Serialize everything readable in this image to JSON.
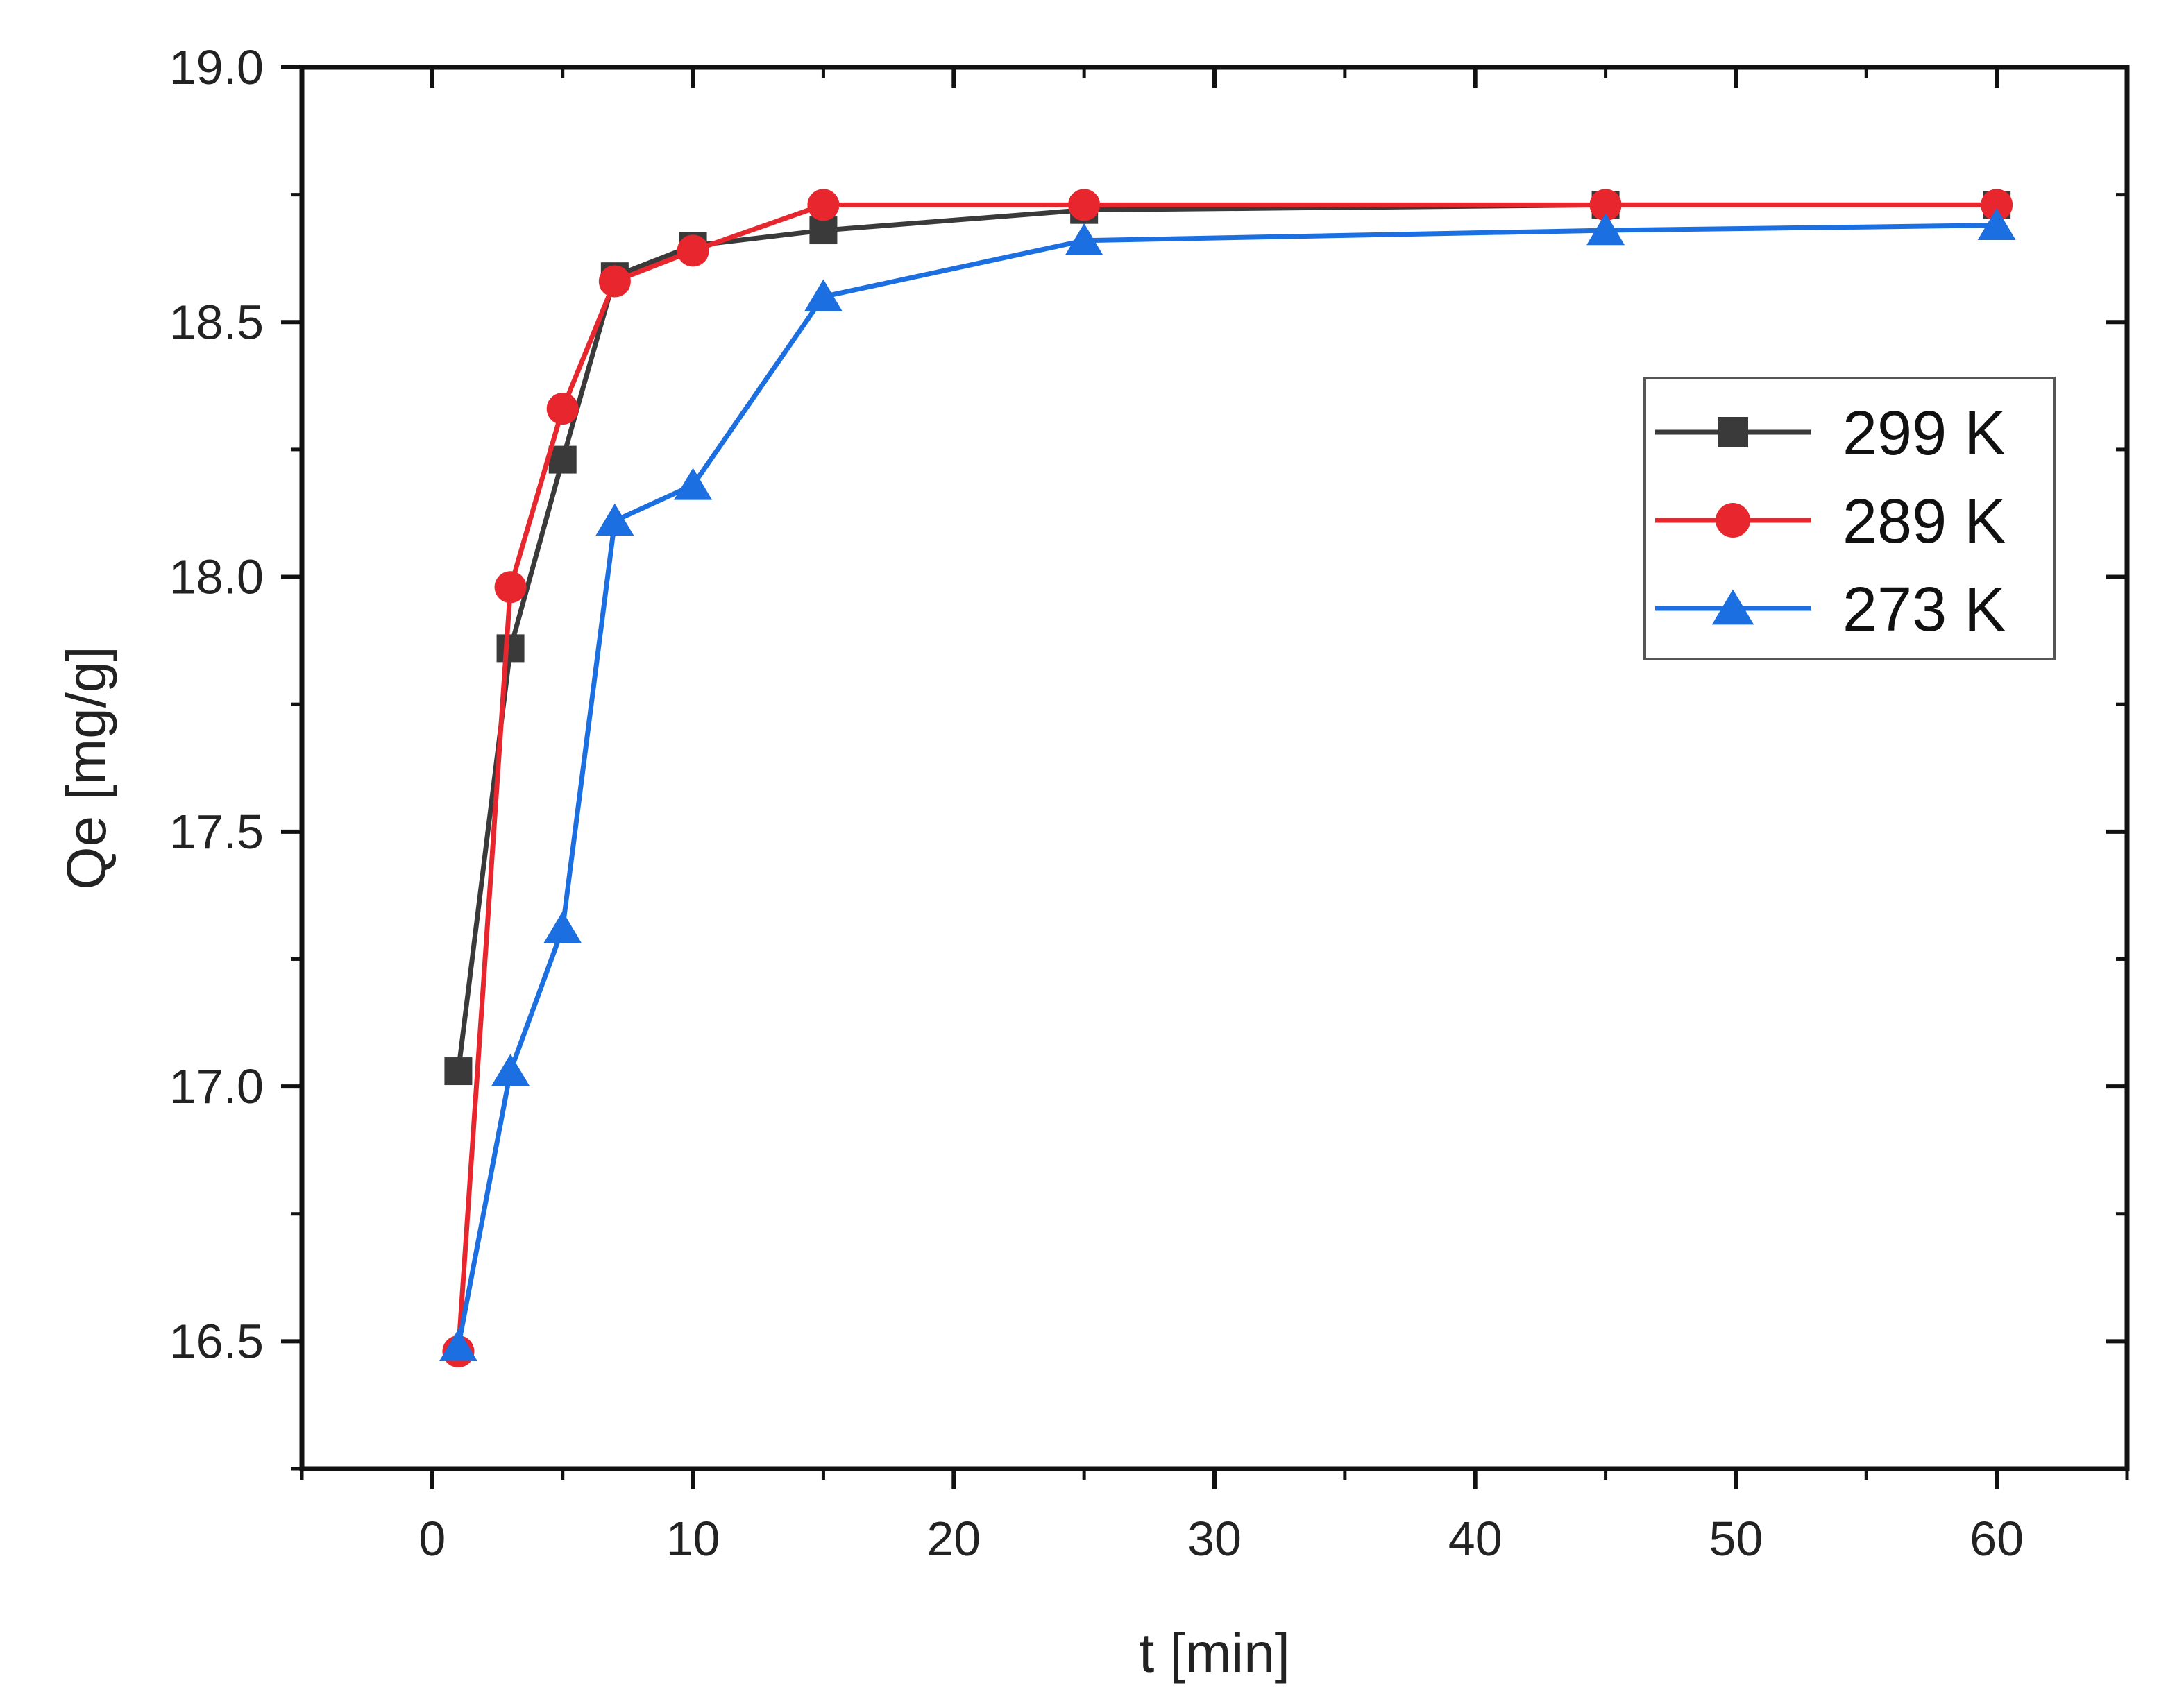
{
  "chart_data": {
    "type": "line",
    "xlabel": "t [min]",
    "ylabel": "Qe [mg/g]",
    "xlim": [
      -5,
      65
    ],
    "ylim": [
      16.25,
      19.0
    ],
    "x_ticks": [
      0,
      10,
      20,
      30,
      40,
      50,
      60
    ],
    "y_ticks": [
      16.5,
      17.0,
      17.5,
      18.0,
      18.5,
      19.0
    ],
    "x_tick_labels": [
      "0",
      "10",
      "20",
      "30",
      "40",
      "50",
      "60"
    ],
    "y_tick_labels": [
      "16.5",
      "17.0",
      "17.5",
      "18.0",
      "18.5",
      "19.0"
    ],
    "grid": false,
    "legend_position": "top-right",
    "x": [
      1,
      3,
      5,
      7,
      10,
      15,
      25,
      45,
      60
    ],
    "series": [
      {
        "name": "299 K",
        "color": "#3a3a3a",
        "marker": "square",
        "values": [
          17.03,
          17.86,
          18.23,
          18.59,
          18.65,
          18.68,
          18.72,
          18.73,
          18.73
        ]
      },
      {
        "name": "289 K",
        "color": "#e8262d",
        "marker": "circle",
        "values": [
          16.48,
          17.98,
          18.33,
          18.58,
          18.64,
          18.73,
          18.73,
          18.73,
          18.73
        ]
      },
      {
        "name": "273 K",
        "color": "#1b6fe0",
        "marker": "triangle",
        "values": [
          16.49,
          17.03,
          17.31,
          18.11,
          18.18,
          18.55,
          18.66,
          18.68,
          18.69
        ]
      }
    ]
  }
}
